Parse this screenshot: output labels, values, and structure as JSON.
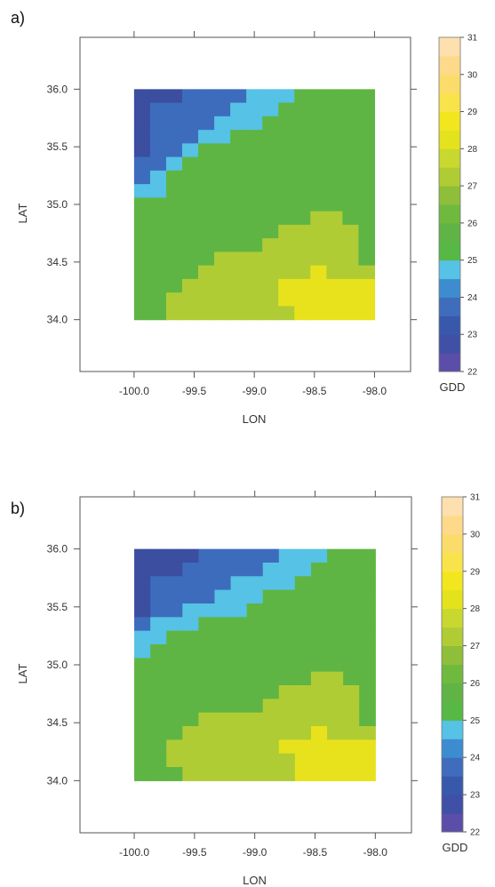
{
  "chart_data": [
    {
      "type": "heatmap",
      "panel_label": "a)",
      "xlabel": "LON",
      "ylabel": "LAT",
      "xlim": [
        -100.45,
        -97.7
      ],
      "ylim": [
        33.55,
        36.45
      ],
      "x_ticks": [
        "-100.0",
        "-99.5",
        "-99.0",
        "-98.5",
        "-98.0"
      ],
      "y_ticks": [
        "34.0",
        "34.5",
        "35.0",
        "35.5",
        "36.0"
      ],
      "colorbar_label": "GDD",
      "colorbar_ticks": [
        22,
        23,
        24,
        25,
        26,
        27,
        28,
        29,
        30,
        31
      ],
      "colorbar_range": [
        22,
        31
      ],
      "grid_extent": {
        "lon": [
          -100.0,
          -98.0
        ],
        "lat": [
          34.0,
          36.0
        ]
      },
      "grid": [
        "AAABBBBCCCGGGGG",
        "ABBBBBCCCGGGGGG",
        "ABBBBCCCGGGGGGG",
        "ABBBCCGGGGGGGGG",
        "ABBCGGGGGGGGGGG",
        "BBCGGGGGGGGGGGG",
        "BCGGGGGGGGGGGGG",
        "CCGGGGGGGGGGGGG",
        "GGGGGGGGGGGGGGG",
        "GGGGGGGGGGGHHGG",
        "GGGGGGGGGHHHHHG",
        "GGGGGGGGHHHHHHG",
        "GGGGGHHHHHHHHHG",
        "GGGGHHHHHHHIHHH",
        "GGGHHHHHHIIIIII",
        "GGHHHHHHHIIIIII",
        "GGHHHHHHHHIIIII"
      ]
    },
    {
      "type": "heatmap",
      "panel_label": "b)",
      "xlabel": "LON",
      "ylabel": "LAT",
      "xlim": [
        -100.45,
        -97.7
      ],
      "ylim": [
        33.55,
        36.45
      ],
      "x_ticks": [
        "-100.0",
        "-99.5",
        "-99.0",
        "-98.5",
        "-98.0"
      ],
      "y_ticks": [
        "34.0",
        "34.5",
        "35.0",
        "35.5",
        "36.0"
      ],
      "colorbar_label": "GDD",
      "colorbar_ticks": [
        22,
        23,
        24,
        25,
        26,
        27,
        28,
        29,
        30,
        31
      ],
      "colorbar_range": [
        22,
        31
      ],
      "grid_extent": {
        "lon": [
          -100.0,
          -98.0
        ],
        "lat": [
          34.0,
          36.0
        ]
      },
      "grid": [
        "AAAABBBBBCCCGGG",
        "AAABBBBBCCCGGGG",
        "ABBBBBCCCCGGGGG",
        "ABBBBCCCGGGGGGG",
        "ABBCCCCGGGGGGGG",
        "BCCCGGGGGGGGGGG",
        "CCGGGGGGGGGGGGG",
        "CGGGGGGGGGGGGGG",
        "GGGGGGGGGGGGGGG",
        "GGGGGGGGGGGHHGG",
        "GGGGGGGGGHHHHHG",
        "GGGGGGGGHHHHHHG",
        "GGGGHHHHHHHHHHG",
        "GGGHHHHHHHHIHHH",
        "GGHHHHHHHIIIIII",
        "GGHHHHHHHHIIIII",
        "GGGHHHHHHHIIIII"
      ]
    }
  ],
  "palette": {
    "A": "#3b4ea0",
    "B": "#3d6cbd",
    "C": "#55c2e6",
    "G": "#5fb543",
    "H": "#b0cc35",
    "I": "#e8e21c"
  },
  "colorbar_colors": [
    "#5a4ea8",
    "#3f50a6",
    "#3859ab",
    "#3f6cbd",
    "#3d8ccf",
    "#55c2e6",
    "#57b845",
    "#60b446",
    "#70b93f",
    "#8fbe3a",
    "#b0cc35",
    "#c8d82e",
    "#e3e21d",
    "#f2e61e",
    "#f8e44a",
    "#fbdc6a",
    "#fdd98a",
    "#fedfae"
  ]
}
